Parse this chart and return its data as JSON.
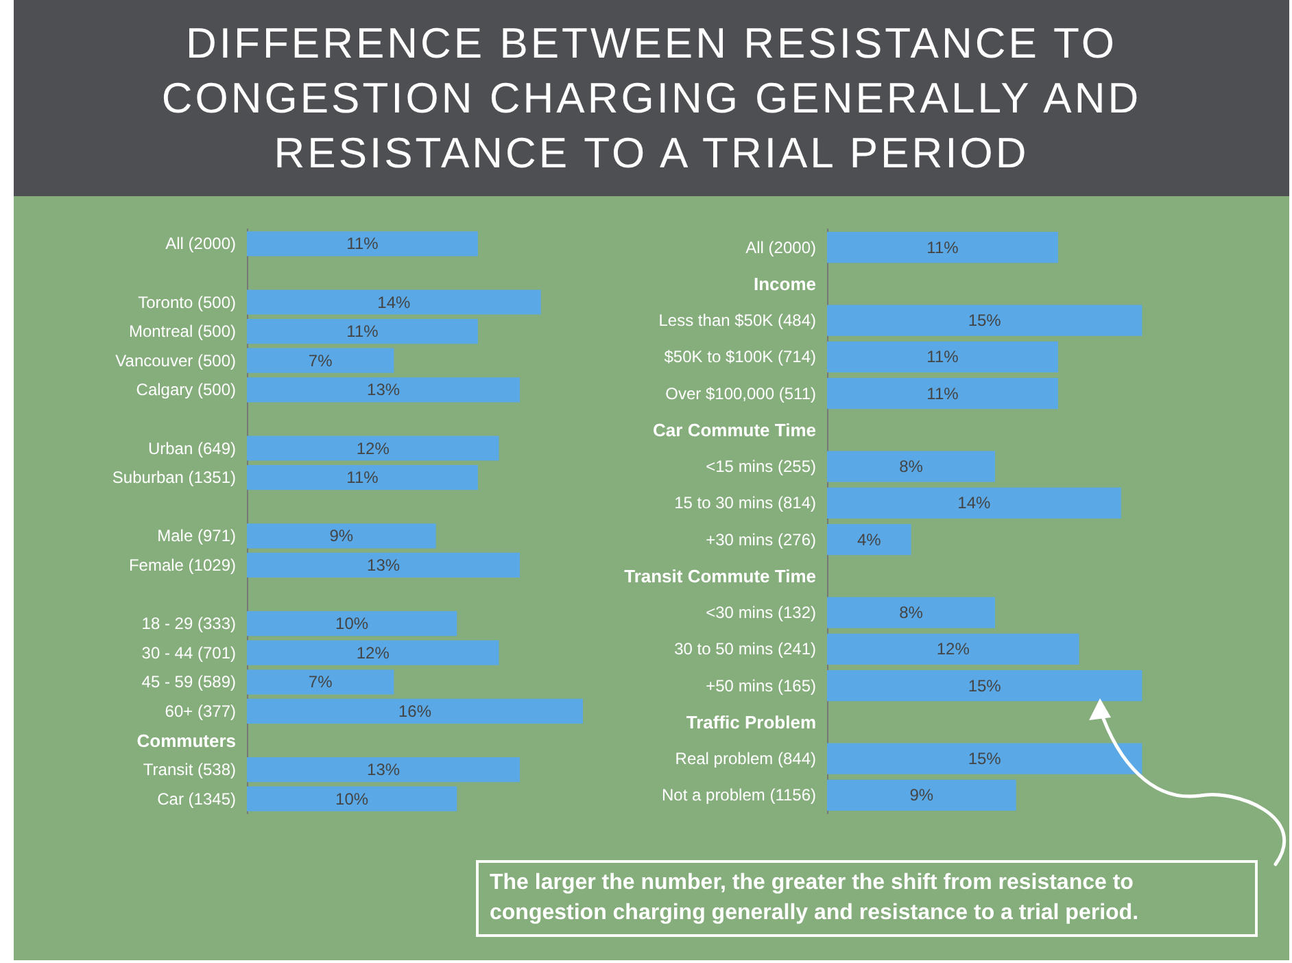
{
  "chart_data": [
    {
      "type": "bar",
      "orientation": "horizontal",
      "title": "DIFFERENCE BETWEEN RESISTANCE TO CONGESTION CHARGING GENERALLY AND RESISTANCE TO A TRIAL PERIOD",
      "color": "#5aa9e6",
      "categories": [
        "All (2000)",
        null,
        "Toronto (500)",
        "Montreal (500)",
        "Vancouver (500)",
        "Calgary (500)",
        null,
        "Urban (649)",
        "Suburban (1351)",
        null,
        "Male (971)",
        "Female (1029)",
        null,
        "18 - 29 (333)",
        "30 - 44 (701)",
        "45 - 59 (589)",
        "60+ (377)",
        "Commuters",
        "Transit (538)",
        "Car (1345)"
      ],
      "values": [
        11,
        null,
        14,
        11,
        7,
        13,
        null,
        12,
        11,
        null,
        9,
        13,
        null,
        10,
        12,
        7,
        16,
        null,
        13,
        10
      ],
      "value_labels": [
        "11%",
        null,
        "14%",
        "11%",
        "7%",
        "13%",
        null,
        "12%",
        "11%",
        null,
        "9%",
        "13%",
        null,
        "10%",
        "12%",
        "7%",
        "16%",
        null,
        "13%",
        "10%"
      ]
    },
    {
      "type": "bar",
      "orientation": "horizontal",
      "color": "#5aa9e6",
      "categories": [
        "All (2000)",
        "Income",
        "Less than $50K (484)",
        "$50K to $100K (714)",
        "Over $100,000 (511)",
        "Car Commute Time",
        "<15 mins (255)",
        "15 to 30 mins (814)",
        "+30 mins (276)",
        "Transit Commute Time",
        "<30 mins (132)",
        "30 to 50 mins (241)",
        "+50 mins (165)",
        "Traffic Problem",
        "Real problem (844)",
        "Not a problem (1156)"
      ],
      "values": [
        11,
        null,
        15,
        11,
        11,
        null,
        8,
        14,
        4,
        null,
        8,
        12,
        15,
        null,
        15,
        9
      ],
      "value_labels": [
        "11%",
        null,
        "15%",
        "11%",
        "11%",
        null,
        "8%",
        "14%",
        "4%",
        null,
        "8%",
        "12%",
        "15%",
        null,
        "15%",
        "9%"
      ],
      "annotations": [
        "The larger the number, the greater the shift from resistance to congestion charging generally and resistance to a trial period."
      ]
    }
  ]
}
